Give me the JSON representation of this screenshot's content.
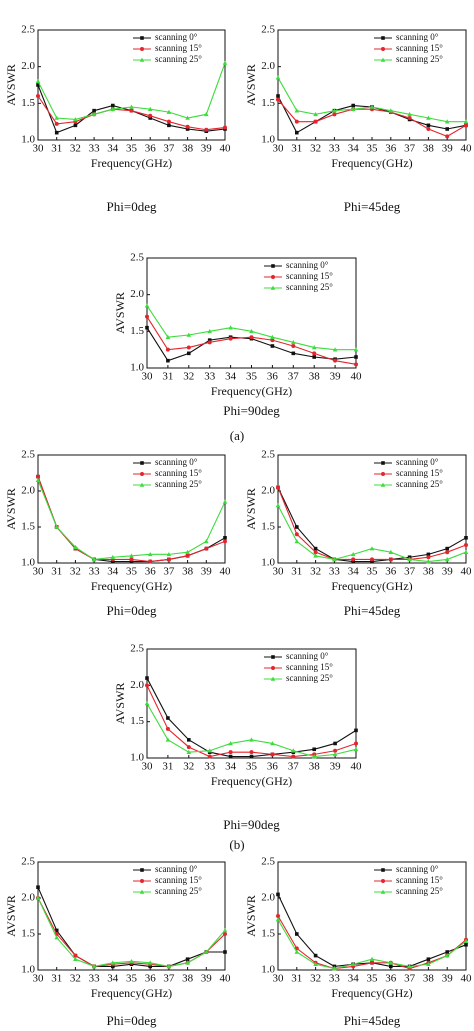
{
  "figure_labels": [
    "(a)",
    "(b)"
  ],
  "chart_data": [
    {
      "type": "line",
      "caption": "Phi=0deg",
      "x_label": "Frequency(GHz)",
      "y_label": "AVSWR",
      "x": [
        30,
        31,
        32,
        33,
        34,
        35,
        36,
        37,
        38,
        39,
        40
      ],
      "xlim": [
        30,
        40
      ],
      "xticks": [
        30,
        31,
        32,
        33,
        34,
        35,
        36,
        37,
        38,
        39,
        40
      ],
      "ylim": [
        1,
        2.5
      ],
      "yticks": [
        {
          "value": 1,
          "label": "1.0"
        },
        1.5,
        {
          "value": 2,
          "label": "2.0"
        },
        2.5
      ],
      "legend": "upper right",
      "series": [
        {
          "name": "scanning 0°",
          "color": "#111111",
          "values": [
            1.75,
            1.1,
            1.2,
            1.4,
            1.47,
            1.4,
            1.3,
            1.2,
            1.15,
            1.12,
            1.15
          ]
        },
        {
          "name": "scanning 15°",
          "color": "#e3262e",
          "values": [
            1.6,
            1.22,
            1.25,
            1.35,
            1.42,
            1.4,
            1.33,
            1.25,
            1.18,
            1.14,
            1.17
          ]
        },
        {
          "name": "scanning 25°",
          "color": "#3ddc3d",
          "values": [
            1.8,
            1.3,
            1.28,
            1.35,
            1.42,
            1.45,
            1.42,
            1.38,
            1.3,
            1.35,
            2.05
          ]
        }
      ]
    },
    {
      "type": "line",
      "caption": "Phi=45deg",
      "x_label": "Frequency(GHz)",
      "y_label": "AVSWR",
      "x": [
        30,
        31,
        32,
        33,
        34,
        35,
        36,
        37,
        38,
        39,
        40
      ],
      "xlim": [
        30,
        40
      ],
      "xticks": [
        30,
        31,
        32,
        33,
        34,
        35,
        36,
        37,
        38,
        39,
        40
      ],
      "ylim": [
        1,
        2.5
      ],
      "yticks": [
        {
          "value": 1,
          "label": "1.0"
        },
        1.5,
        {
          "value": 2,
          "label": "2.0"
        },
        2.5
      ],
      "legend": "upper right",
      "series": [
        {
          "name": "scanning 0°",
          "color": "#111111",
          "values": [
            1.6,
            1.1,
            1.25,
            1.4,
            1.47,
            1.45,
            1.38,
            1.28,
            1.2,
            1.15,
            1.2
          ]
        },
        {
          "name": "scanning 15°",
          "color": "#e3262e",
          "values": [
            1.55,
            1.25,
            1.25,
            1.35,
            1.42,
            1.42,
            1.38,
            1.3,
            1.15,
            1.05,
            1.2
          ]
        },
        {
          "name": "scanning 25°",
          "color": "#3ddc3d",
          "values": [
            1.85,
            1.4,
            1.35,
            1.4,
            1.42,
            1.45,
            1.4,
            1.35,
            1.3,
            1.25,
            1.25
          ]
        }
      ]
    },
    {
      "type": "line",
      "caption": "Phi=90deg",
      "x_label": "Frequency(GHz)",
      "y_label": "AVSWR",
      "x": [
        30,
        31,
        32,
        33,
        34,
        35,
        36,
        37,
        38,
        39,
        40
      ],
      "xlim": [
        30,
        40
      ],
      "xticks": [
        30,
        31,
        32,
        33,
        34,
        35,
        36,
        37,
        38,
        39,
        40
      ],
      "ylim": [
        1,
        2.5
      ],
      "yticks": [
        {
          "value": 1,
          "label": "1.0"
        },
        1.5,
        {
          "value": 2,
          "label": "2.0"
        },
        2.5
      ],
      "legend": "upper right",
      "series": [
        {
          "name": "scanning 0°",
          "color": "#111111",
          "values": [
            1.55,
            1.1,
            1.2,
            1.38,
            1.42,
            1.4,
            1.3,
            1.2,
            1.15,
            1.12,
            1.15
          ]
        },
        {
          "name": "scanning 15°",
          "color": "#e3262e",
          "values": [
            1.7,
            1.25,
            1.28,
            1.35,
            1.4,
            1.42,
            1.38,
            1.3,
            1.2,
            1.1,
            1.05
          ]
        },
        {
          "name": "scanning 25°",
          "color": "#3ddc3d",
          "values": [
            1.85,
            1.42,
            1.45,
            1.5,
            1.55,
            1.5,
            1.42,
            1.35,
            1.28,
            1.25,
            1.25
          ]
        }
      ]
    },
    {
      "type": "line",
      "caption": "Phi=0deg",
      "x_label": "Frequency(GHz)",
      "y_label": "AVSWR",
      "x": [
        30,
        31,
        32,
        33,
        34,
        35,
        36,
        37,
        38,
        39,
        40
      ],
      "xlim": [
        30,
        40
      ],
      "xticks": [
        30,
        31,
        32,
        33,
        34,
        35,
        36,
        37,
        38,
        39,
        40
      ],
      "ylim": [
        1,
        2.5
      ],
      "yticks": [
        {
          "value": 1,
          "label": "1.0"
        },
        1.5,
        {
          "value": 2,
          "label": "2.0"
        },
        2.5
      ],
      "legend": "upper right",
      "series": [
        {
          "name": "scanning 0°",
          "color": "#111111",
          "values": [
            2.2,
            1.5,
            1.2,
            1.05,
            1.02,
            1.02,
            1.02,
            1.05,
            1.1,
            1.2,
            1.35
          ]
        },
        {
          "name": "scanning 15°",
          "color": "#e3262e",
          "values": [
            2.2,
            1.5,
            1.2,
            1.05,
            1.05,
            1.05,
            1.02,
            1.05,
            1.1,
            1.2,
            1.3
          ]
        },
        {
          "name": "scanning 25°",
          "color": "#3ddc3d",
          "values": [
            2.15,
            1.5,
            1.22,
            1.05,
            1.08,
            1.1,
            1.12,
            1.12,
            1.15,
            1.3,
            1.85
          ]
        }
      ]
    },
    {
      "type": "line",
      "caption": "Phi=45deg",
      "x_label": "Frequency(GHz)",
      "y_label": "AVSWR",
      "x": [
        30,
        31,
        32,
        33,
        34,
        35,
        36,
        37,
        38,
        39,
        40
      ],
      "xlim": [
        30,
        40
      ],
      "xticks": [
        30,
        31,
        32,
        33,
        34,
        35,
        36,
        37,
        38,
        39,
        40
      ],
      "ylim": [
        1,
        2.5
      ],
      "yticks": [
        {
          "value": 1,
          "label": "1.0"
        },
        1.5,
        {
          "value": 2,
          "label": "2.0"
        },
        2.5
      ],
      "legend": "upper right",
      "series": [
        {
          "name": "scanning 0°",
          "color": "#111111",
          "values": [
            2.05,
            1.5,
            1.2,
            1.05,
            1.02,
            1.02,
            1.05,
            1.08,
            1.12,
            1.2,
            1.35
          ]
        },
        {
          "name": "scanning 15°",
          "color": "#e3262e",
          "values": [
            2.05,
            1.4,
            1.15,
            1.05,
            1.05,
            1.05,
            1.05,
            1.05,
            1.08,
            1.15,
            1.25
          ]
        },
        {
          "name": "scanning 25°",
          "color": "#3ddc3d",
          "values": [
            1.8,
            1.3,
            1.1,
            1.05,
            1.12,
            1.2,
            1.15,
            1.05,
            1.02,
            1.05,
            1.15
          ]
        }
      ]
    },
    {
      "type": "line",
      "caption": "Phi=90deg",
      "x_label": "Frequency(GHz)",
      "y_label": "AVSWR",
      "x": [
        30,
        31,
        32,
        33,
        34,
        35,
        36,
        37,
        38,
        39,
        40
      ],
      "xlim": [
        30,
        40
      ],
      "xticks": [
        30,
        31,
        32,
        33,
        34,
        35,
        36,
        37,
        38,
        39,
        40
      ],
      "ylim": [
        1,
        2.5
      ],
      "yticks": [
        {
          "value": 1,
          "label": "1.0"
        },
        1.5,
        {
          "value": 2,
          "label": "2.0"
        },
        2.5
      ],
      "legend": "upper right",
      "series": [
        {
          "name": "scanning 0°",
          "color": "#111111",
          "values": [
            2.1,
            1.55,
            1.25,
            1.08,
            1.02,
            1.02,
            1.05,
            1.08,
            1.12,
            1.2,
            1.38
          ]
        },
        {
          "name": "scanning 15°",
          "color": "#e3262e",
          "values": [
            2.0,
            1.4,
            1.15,
            1.02,
            1.08,
            1.08,
            1.05,
            1.02,
            1.05,
            1.1,
            1.2
          ]
        },
        {
          "name": "scanning 25°",
          "color": "#3ddc3d",
          "values": [
            1.75,
            1.25,
            1.08,
            1.1,
            1.2,
            1.25,
            1.2,
            1.1,
            1.02,
            1.05,
            1.12
          ]
        }
      ]
    },
    {
      "type": "line",
      "caption": "Phi=0deg",
      "x_label": "Frequency(GHz)",
      "y_label": "AVSWR",
      "x": [
        30,
        31,
        32,
        33,
        34,
        35,
        36,
        37,
        38,
        39,
        40
      ],
      "xlim": [
        30,
        40
      ],
      "xticks": [
        30,
        31,
        32,
        33,
        34,
        35,
        36,
        37,
        38,
        39,
        40
      ],
      "ylim": [
        1,
        2.5
      ],
      "yticks": [
        {
          "value": 1,
          "label": "1.0"
        },
        1.5,
        {
          "value": 2,
          "label": "2.0"
        },
        2.5
      ],
      "legend": "upper right",
      "series": [
        {
          "name": "scanning 0°",
          "color": "#111111",
          "values": [
            2.15,
            1.55,
            1.2,
            1.05,
            1.05,
            1.08,
            1.05,
            1.05,
            1.15,
            1.25,
            1.25
          ]
        },
        {
          "name": "scanning 15°",
          "color": "#e3262e",
          "values": [
            2.0,
            1.5,
            1.2,
            1.05,
            1.08,
            1.1,
            1.08,
            1.05,
            1.1,
            1.25,
            1.5
          ]
        },
        {
          "name": "scanning 25°",
          "color": "#3ddc3d",
          "values": [
            2.0,
            1.45,
            1.15,
            1.05,
            1.1,
            1.12,
            1.1,
            1.05,
            1.1,
            1.25,
            1.55
          ]
        }
      ]
    },
    {
      "type": "line",
      "caption": "Phi=45deg",
      "x_label": "Frequency(GHz)",
      "y_label": "AVSWR",
      "x": [
        30,
        31,
        32,
        33,
        34,
        35,
        36,
        37,
        38,
        39,
        40
      ],
      "xlim": [
        30,
        40
      ],
      "xticks": [
        30,
        31,
        32,
        33,
        34,
        35,
        36,
        37,
        38,
        39,
        40
      ],
      "ylim": [
        1,
        2.5
      ],
      "yticks": [
        {
          "value": 1,
          "label": "1.0"
        },
        1.5,
        {
          "value": 2,
          "label": "2.0"
        },
        2.5
      ],
      "legend": "upper right",
      "series": [
        {
          "name": "scanning 0°",
          "color": "#111111",
          "values": [
            2.05,
            1.5,
            1.2,
            1.05,
            1.08,
            1.1,
            1.05,
            1.05,
            1.15,
            1.25,
            1.35
          ]
        },
        {
          "name": "scanning 15°",
          "color": "#e3262e",
          "values": [
            1.75,
            1.3,
            1.1,
            1.02,
            1.05,
            1.1,
            1.1,
            1.02,
            1.1,
            1.2,
            1.42
          ]
        },
        {
          "name": "scanning 25°",
          "color": "#3ddc3d",
          "values": [
            1.7,
            1.25,
            1.08,
            1.02,
            1.08,
            1.15,
            1.1,
            1.05,
            1.08,
            1.2,
            1.4
          ]
        }
      ]
    }
  ]
}
